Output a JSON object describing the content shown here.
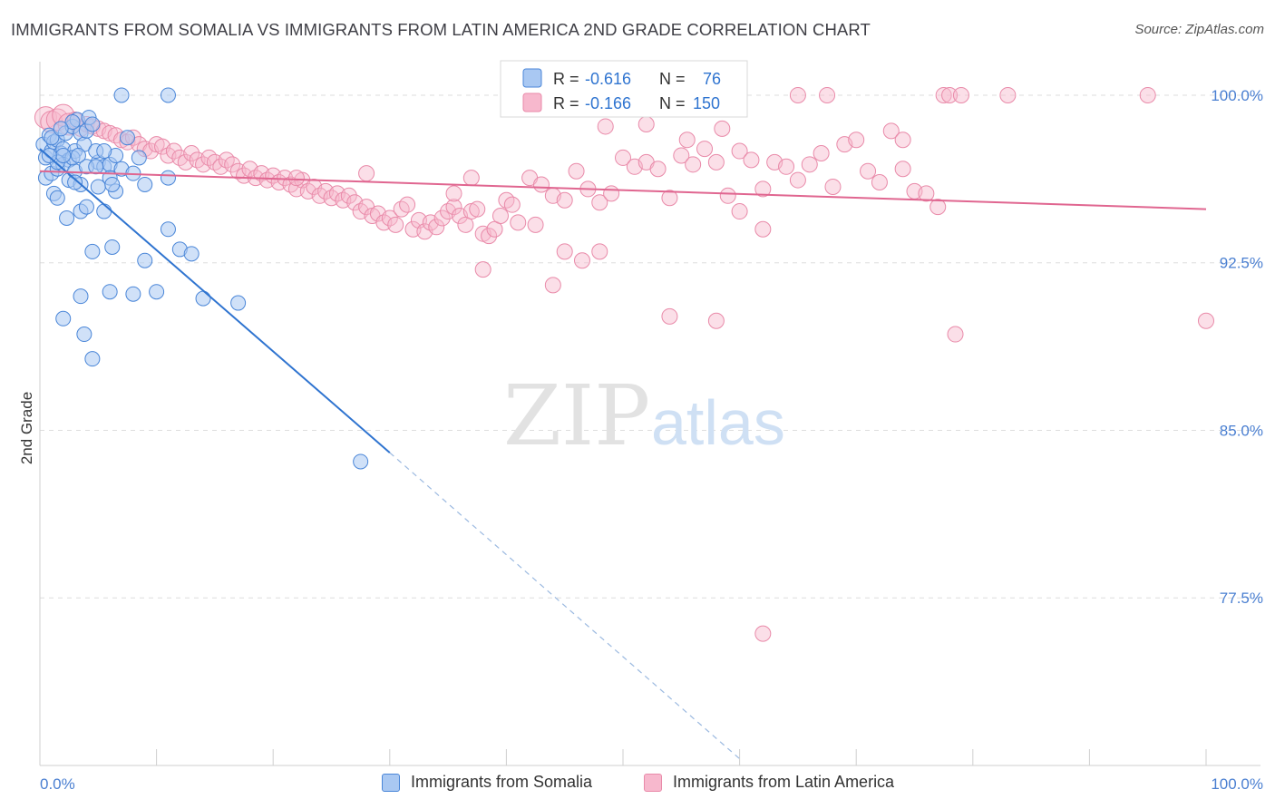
{
  "title": "IMMIGRANTS FROM SOMALIA VS IMMIGRANTS FROM LATIN AMERICA 2ND GRADE CORRELATION CHART",
  "source": "Source: ZipAtlas.com",
  "watermark": {
    "zip": "ZIP",
    "atlas": "atlas"
  },
  "colors": {
    "somalia_fill": "#a9c8f2",
    "somalia_stroke": "#4a86d8",
    "somalia_line": "#2f74d0",
    "latam_fill": "#f7b8cd",
    "latam_stroke": "#e98aa9",
    "latam_line": "#e06690",
    "tick": "#4a7fd1",
    "grid": "#dddddd"
  },
  "legend": {
    "somalia": {
      "r_label": "R = ",
      "r_value": "-0.616",
      "n_label": "N = ",
      "n_value": "76"
    },
    "latam": {
      "r_label": "R = ",
      "r_value": "-0.166",
      "n_label": "N = ",
      "n_value": "150"
    }
  },
  "chart_data": {
    "type": "scatter",
    "title": "IMMIGRANTS FROM SOMALIA VS IMMIGRANTS FROM LATIN AMERICA 2ND GRADE CORRELATION CHART",
    "xlabel": "",
    "ylabel": "2nd Grade",
    "xlim": [
      0,
      100
    ],
    "ylim": [
      70.0,
      101.5
    ],
    "x_tick_labels": [
      "0.0%",
      "100.0%"
    ],
    "y_ticks": [
      77.5,
      85.0,
      92.5,
      100.0
    ],
    "y_tick_labels": [
      "77.5%",
      "85.0%",
      "92.5%",
      "100.0%"
    ],
    "grid": true,
    "legend_position": "top-center",
    "series": [
      {
        "name": "Immigrants from Somalia",
        "color": "#4a86d8",
        "trend": {
          "x": [
            0,
            30
          ],
          "y": [
            97.6,
            84.0
          ],
          "dashed_to": [
            60,
            70.3
          ]
        },
        "points": [
          [
            0.3,
            97.8
          ],
          [
            0.5,
            97.2
          ],
          [
            0.8,
            98.2
          ],
          [
            1.0,
            97.5
          ],
          [
            1.2,
            97.9
          ],
          [
            1.5,
            98.0
          ],
          [
            1.8,
            97.4
          ],
          [
            2.0,
            97.6
          ],
          [
            2.2,
            98.3
          ],
          [
            2.5,
            97.1
          ],
          [
            2.8,
            98.6
          ],
          [
            3.0,
            97.5
          ],
          [
            3.2,
            98.9
          ],
          [
            3.5,
            98.3
          ],
          [
            3.8,
            97.8
          ],
          [
            4.0,
            98.4
          ],
          [
            4.2,
            99.0
          ],
          [
            4.5,
            98.7
          ],
          [
            5.0,
            97.0
          ],
          [
            5.5,
            96.8
          ],
          [
            6.0,
            96.9
          ],
          [
            6.5,
            97.3
          ],
          [
            7.0,
            96.7
          ],
          [
            7.5,
            98.1
          ],
          [
            8.0,
            96.5
          ],
          [
            8.5,
            97.2
          ],
          [
            9.0,
            96.0
          ],
          [
            0.5,
            96.3
          ],
          [
            1.0,
            96.5
          ],
          [
            1.5,
            96.7
          ],
          [
            2.0,
            96.9
          ],
          [
            2.5,
            96.2
          ],
          [
            3.0,
            96.6
          ],
          [
            3.5,
            96.0
          ],
          [
            4.0,
            96.8
          ],
          [
            5.0,
            95.9
          ],
          [
            6.0,
            96.3
          ],
          [
            6.5,
            95.7
          ],
          [
            1.2,
            95.6
          ],
          [
            1.5,
            95.4
          ],
          [
            3.5,
            94.8
          ],
          [
            2.3,
            94.5
          ],
          [
            4.0,
            95.0
          ],
          [
            5.5,
            94.8
          ],
          [
            7.0,
            100.0
          ],
          [
            11.0,
            100.0
          ],
          [
            11.0,
            96.3
          ],
          [
            11.0,
            94.0
          ],
          [
            6.2,
            93.2
          ],
          [
            4.5,
            93.0
          ],
          [
            9.0,
            92.6
          ],
          [
            12.0,
            93.1
          ],
          [
            13.0,
            92.9
          ],
          [
            3.5,
            91.0
          ],
          [
            6.0,
            91.2
          ],
          [
            8.0,
            91.1
          ],
          [
            10.0,
            91.2
          ],
          [
            14.0,
            90.9
          ],
          [
            17.0,
            90.7
          ],
          [
            2.0,
            90.0
          ],
          [
            3.8,
            89.3
          ],
          [
            4.5,
            88.2
          ],
          [
            27.5,
            83.6
          ],
          [
            1.5,
            97.0
          ],
          [
            2.8,
            97.2
          ],
          [
            4.8,
            97.5
          ],
          [
            3.3,
            97.3
          ],
          [
            2.0,
            97.3
          ],
          [
            6.2,
            96.0
          ],
          [
            3.0,
            96.1
          ],
          [
            1.0,
            98.1
          ],
          [
            0.8,
            97.3
          ],
          [
            4.8,
            96.8
          ],
          [
            5.5,
            97.5
          ],
          [
            2.8,
            98.8
          ],
          [
            1.8,
            98.5
          ]
        ]
      },
      {
        "name": "Immigrants from Latin America",
        "color": "#e98aa9",
        "trend": {
          "x": [
            0,
            100
          ],
          "y": [
            96.6,
            94.9
          ]
        },
        "points": [
          [
            0.5,
            99.0
          ],
          [
            1.0,
            98.8
          ],
          [
            1.5,
            98.9
          ],
          [
            2.0,
            99.1
          ],
          [
            2.5,
            98.7
          ],
          [
            3.0,
            98.9
          ],
          [
            3.5,
            98.5
          ],
          [
            4.0,
            98.7
          ],
          [
            4.5,
            98.6
          ],
          [
            5.0,
            98.5
          ],
          [
            5.5,
            98.4
          ],
          [
            6.0,
            98.3
          ],
          [
            6.5,
            98.2
          ],
          [
            7.0,
            98.0
          ],
          [
            7.5,
            97.9
          ],
          [
            8.0,
            98.1
          ],
          [
            8.5,
            97.8
          ],
          [
            9.0,
            97.6
          ],
          [
            9.5,
            97.5
          ],
          [
            10.0,
            97.8
          ],
          [
            10.5,
            97.7
          ],
          [
            11.0,
            97.3
          ],
          [
            11.5,
            97.5
          ],
          [
            12.0,
            97.2
          ],
          [
            12.5,
            97.0
          ],
          [
            13.0,
            97.4
          ],
          [
            13.5,
            97.1
          ],
          [
            14.0,
            96.9
          ],
          [
            14.5,
            97.2
          ],
          [
            15.0,
            97.0
          ],
          [
            15.5,
            96.8
          ],
          [
            16.0,
            97.1
          ],
          [
            16.5,
            96.9
          ],
          [
            17.0,
            96.6
          ],
          [
            17.5,
            96.4
          ],
          [
            18.0,
            96.7
          ],
          [
            18.5,
            96.3
          ],
          [
            19.0,
            96.5
          ],
          [
            19.5,
            96.2
          ],
          [
            20.0,
            96.4
          ],
          [
            20.5,
            96.1
          ],
          [
            21.0,
            96.3
          ],
          [
            21.5,
            96.0
          ],
          [
            22.0,
            95.8
          ],
          [
            22.5,
            96.2
          ],
          [
            23.0,
            95.7
          ],
          [
            23.5,
            95.9
          ],
          [
            24.0,
            95.5
          ],
          [
            24.5,
            95.7
          ],
          [
            25.0,
            95.4
          ],
          [
            25.5,
            95.6
          ],
          [
            26.0,
            95.3
          ],
          [
            26.5,
            95.5
          ],
          [
            27.0,
            95.2
          ],
          [
            27.5,
            94.8
          ],
          [
            28.0,
            95.0
          ],
          [
            28.5,
            94.6
          ],
          [
            29.0,
            94.7
          ],
          [
            29.5,
            94.3
          ],
          [
            30.0,
            94.5
          ],
          [
            30.5,
            94.2
          ],
          [
            31.0,
            94.9
          ],
          [
            31.5,
            95.1
          ],
          [
            32.0,
            94.0
          ],
          [
            32.5,
            94.4
          ],
          [
            33.0,
            93.9
          ],
          [
            33.5,
            94.3
          ],
          [
            34.0,
            94.1
          ],
          [
            34.5,
            94.5
          ],
          [
            35.0,
            94.8
          ],
          [
            35.5,
            95.0
          ],
          [
            36.0,
            94.6
          ],
          [
            36.5,
            94.2
          ],
          [
            37.0,
            94.8
          ],
          [
            37.5,
            94.9
          ],
          [
            38.0,
            93.8
          ],
          [
            38.5,
            93.7
          ],
          [
            39.0,
            94.0
          ],
          [
            39.5,
            94.6
          ],
          [
            40.0,
            95.3
          ],
          [
            40.5,
            95.1
          ],
          [
            41.0,
            94.3
          ],
          [
            42.0,
            96.3
          ],
          [
            43.0,
            96.0
          ],
          [
            44.0,
            95.5
          ],
          [
            45.0,
            95.3
          ],
          [
            46.0,
            96.6
          ],
          [
            47.0,
            95.8
          ],
          [
            48.0,
            95.2
          ],
          [
            49.0,
            95.6
          ],
          [
            50.0,
            97.2
          ],
          [
            51.0,
            96.8
          ],
          [
            52.0,
            97.0
          ],
          [
            53.0,
            96.7
          ],
          [
            54.0,
            95.4
          ],
          [
            55.0,
            97.3
          ],
          [
            56.0,
            96.9
          ],
          [
            57.0,
            97.6
          ],
          [
            58.0,
            97.0
          ],
          [
            59.0,
            95.5
          ],
          [
            60.0,
            97.5
          ],
          [
            61.0,
            97.1
          ],
          [
            62.0,
            95.8
          ],
          [
            63.0,
            97.0
          ],
          [
            64.0,
            96.8
          ],
          [
            65.0,
            96.2
          ],
          [
            66.0,
            96.9
          ],
          [
            67.0,
            97.4
          ],
          [
            68.0,
            95.9
          ],
          [
            69.0,
            97.8
          ],
          [
            70.0,
            98.0
          ],
          [
            71.0,
            96.6
          ],
          [
            72.0,
            96.1
          ],
          [
            73.0,
            98.4
          ],
          [
            74.0,
            96.7
          ],
          [
            75.0,
            95.7
          ],
          [
            76.0,
            95.6
          ],
          [
            77.0,
            95.0
          ],
          [
            28.0,
            96.5
          ],
          [
            37.0,
            96.3
          ],
          [
            42.5,
            94.2
          ],
          [
            45.0,
            93.0
          ],
          [
            46.5,
            92.6
          ],
          [
            48.0,
            93.0
          ],
          [
            44.0,
            91.5
          ],
          [
            38.0,
            92.2
          ],
          [
            54.0,
            90.1
          ],
          [
            58.0,
            89.9
          ],
          [
            62.0,
            94.0
          ],
          [
            60.0,
            94.8
          ],
          [
            65.0,
            100.0
          ],
          [
            67.5,
            100.0
          ],
          [
            77.5,
            100.0
          ],
          [
            78.0,
            100.0
          ],
          [
            79.0,
            100.0
          ],
          [
            83.0,
            100.0
          ],
          [
            95.0,
            100.0
          ],
          [
            62.0,
            75.9
          ],
          [
            78.5,
            89.3
          ],
          [
            100.0,
            89.9
          ],
          [
            74.0,
            98.0
          ],
          [
            52.0,
            98.7
          ],
          [
            48.5,
            98.6
          ],
          [
            55.5,
            98.0
          ],
          [
            58.5,
            98.5
          ],
          [
            35.5,
            95.6
          ],
          [
            22.0,
            96.3
          ]
        ]
      }
    ]
  },
  "bottom_legend": {
    "somalia_label": "Immigrants from Somalia",
    "latam_label": "Immigrants from Latin America"
  }
}
